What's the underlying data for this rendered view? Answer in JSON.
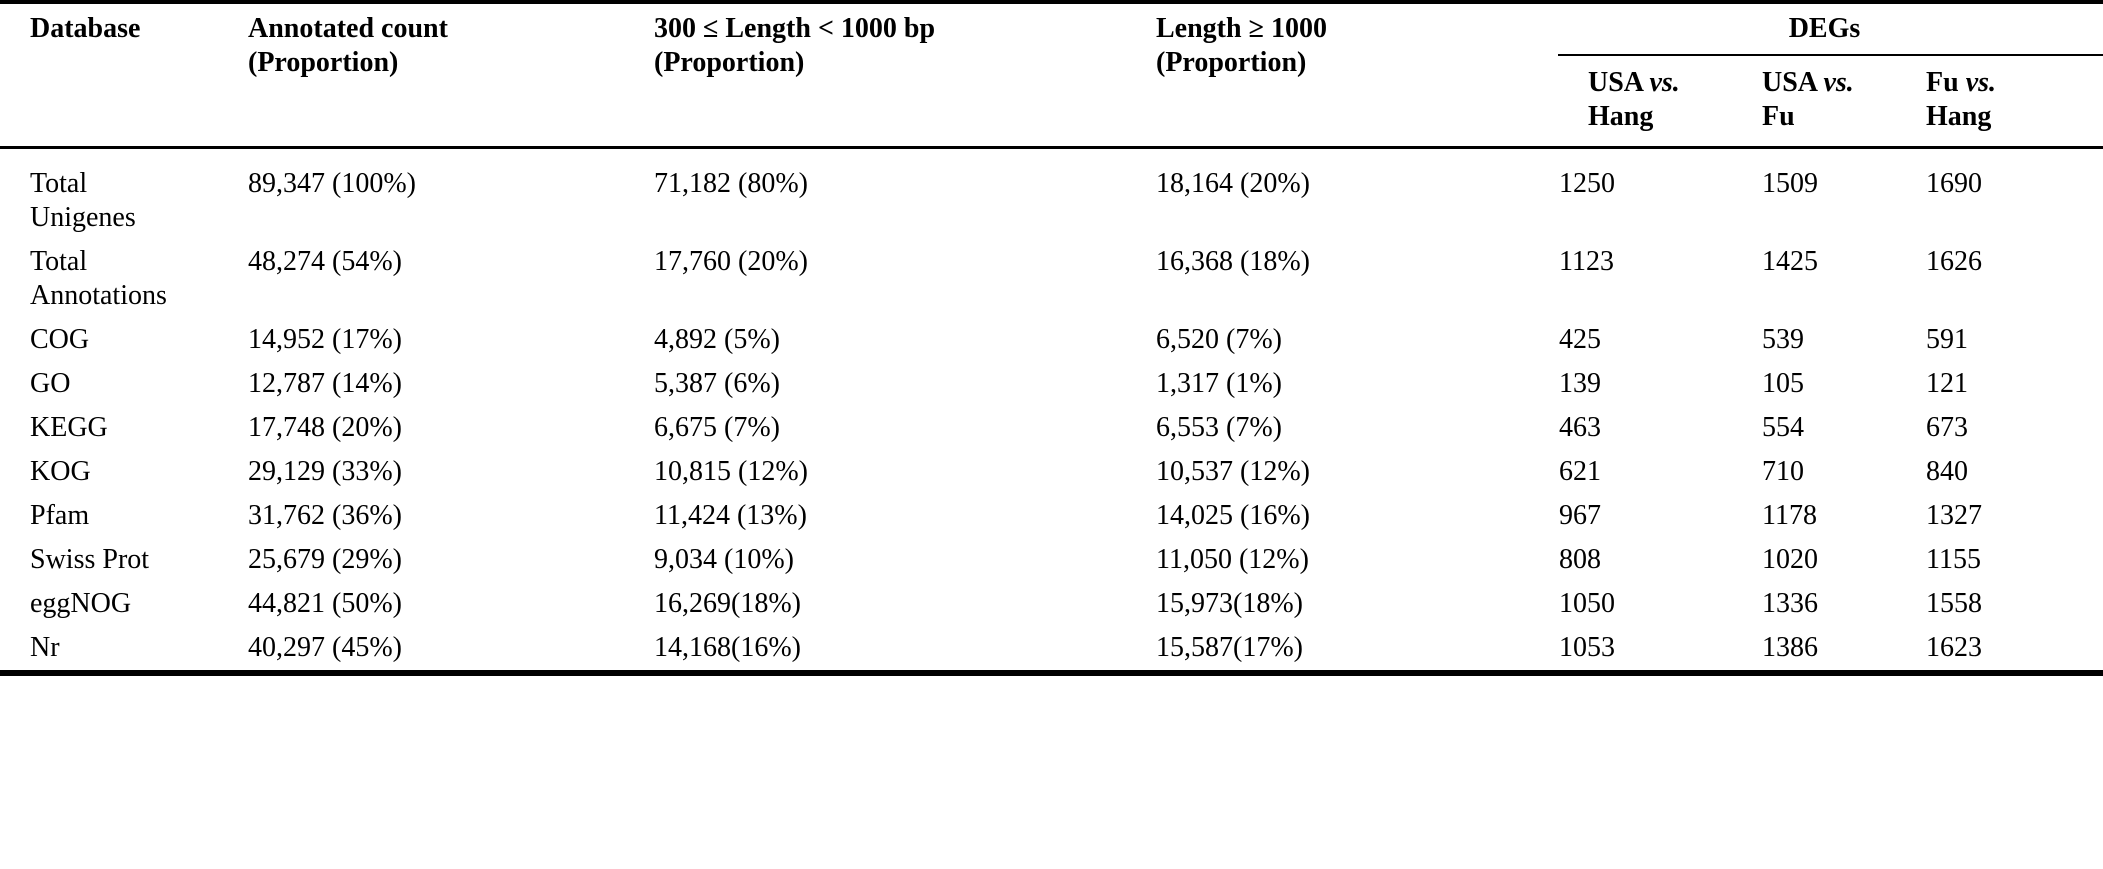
{
  "table": {
    "headers": {
      "database": "Database",
      "annotated_line1": "Annotated count",
      "annotated_line2": "(Proportion)",
      "length_mid_line1": "300 ≤ Length < 1000 bp",
      "length_mid_line2": "(Proportion)",
      "length_high_line1": "Length ≥ 1000",
      "length_high_line2": "(Proportion)",
      "degs": "DEGs"
    },
    "deg_columns": [
      {
        "pre": "USA",
        "vs": "vs.",
        "post": "Hang"
      },
      {
        "pre": "USA",
        "vs": "vs.",
        "post": "Fu"
      },
      {
        "pre": "Fu",
        "vs": "vs.",
        "post": "Hang"
      }
    ],
    "rows": [
      {
        "database": "Total Unigenes",
        "annotated": "89,347 (100%)",
        "len_300_1000": "71,182 (80%)",
        "len_ge_1000": "18,164 (20%)",
        "usa_vs_hang": "1250",
        "usa_vs_fu": "1509",
        "fu_vs_hang": "1690"
      },
      {
        "database": "Total Annotations",
        "annotated": "48,274 (54%)",
        "len_300_1000": "17,760 (20%)",
        "len_ge_1000": "16,368 (18%)",
        "usa_vs_hang": "1123",
        "usa_vs_fu": "1425",
        "fu_vs_hang": "1626"
      },
      {
        "database": "COG",
        "annotated": "14,952 (17%)",
        "len_300_1000": "4,892 (5%)",
        "len_ge_1000": "6,520 (7%)",
        "usa_vs_hang": "425",
        "usa_vs_fu": "539",
        "fu_vs_hang": "591"
      },
      {
        "database": "GO",
        "annotated": "12,787 (14%)",
        "len_300_1000": "5,387 (6%)",
        "len_ge_1000": "1,317 (1%)",
        "usa_vs_hang": "139",
        "usa_vs_fu": "105",
        "fu_vs_hang": "121"
      },
      {
        "database": "KEGG",
        "annotated": "17,748 (20%)",
        "len_300_1000": "6,675 (7%)",
        "len_ge_1000": "6,553 (7%)",
        "usa_vs_hang": "463",
        "usa_vs_fu": "554",
        "fu_vs_hang": "673"
      },
      {
        "database": "KOG",
        "annotated": "29,129 (33%)",
        "len_300_1000": "10,815 (12%)",
        "len_ge_1000": "10,537 (12%)",
        "usa_vs_hang": "621",
        "usa_vs_fu": "710",
        "fu_vs_hang": "840"
      },
      {
        "database": "Pfam",
        "annotated": "31,762 (36%)",
        "len_300_1000": "11,424 (13%)",
        "len_ge_1000": "14,025 (16%)",
        "usa_vs_hang": "967",
        "usa_vs_fu": "1178",
        "fu_vs_hang": "1327"
      },
      {
        "database": "Swiss Prot",
        "annotated": "25,679 (29%)",
        "len_300_1000": "9,034 (10%)",
        "len_ge_1000": "11,050 (12%)",
        "usa_vs_hang": "808",
        "usa_vs_fu": "1020",
        "fu_vs_hang": "1155"
      },
      {
        "database": "eggNOG",
        "annotated": "44,821 (50%)",
        "len_300_1000": "16,269(18%)",
        "len_ge_1000": "15,973(18%)",
        "usa_vs_hang": "1050",
        "usa_vs_fu": "1336",
        "fu_vs_hang": "1558"
      },
      {
        "database": "Nr",
        "annotated": "40,297 (45%)",
        "len_300_1000": "14,168(16%)",
        "len_ge_1000": "15,587(17%)",
        "usa_vs_hang": "1053",
        "usa_vs_fu": "1386",
        "fu_vs_hang": "1623"
      }
    ]
  }
}
